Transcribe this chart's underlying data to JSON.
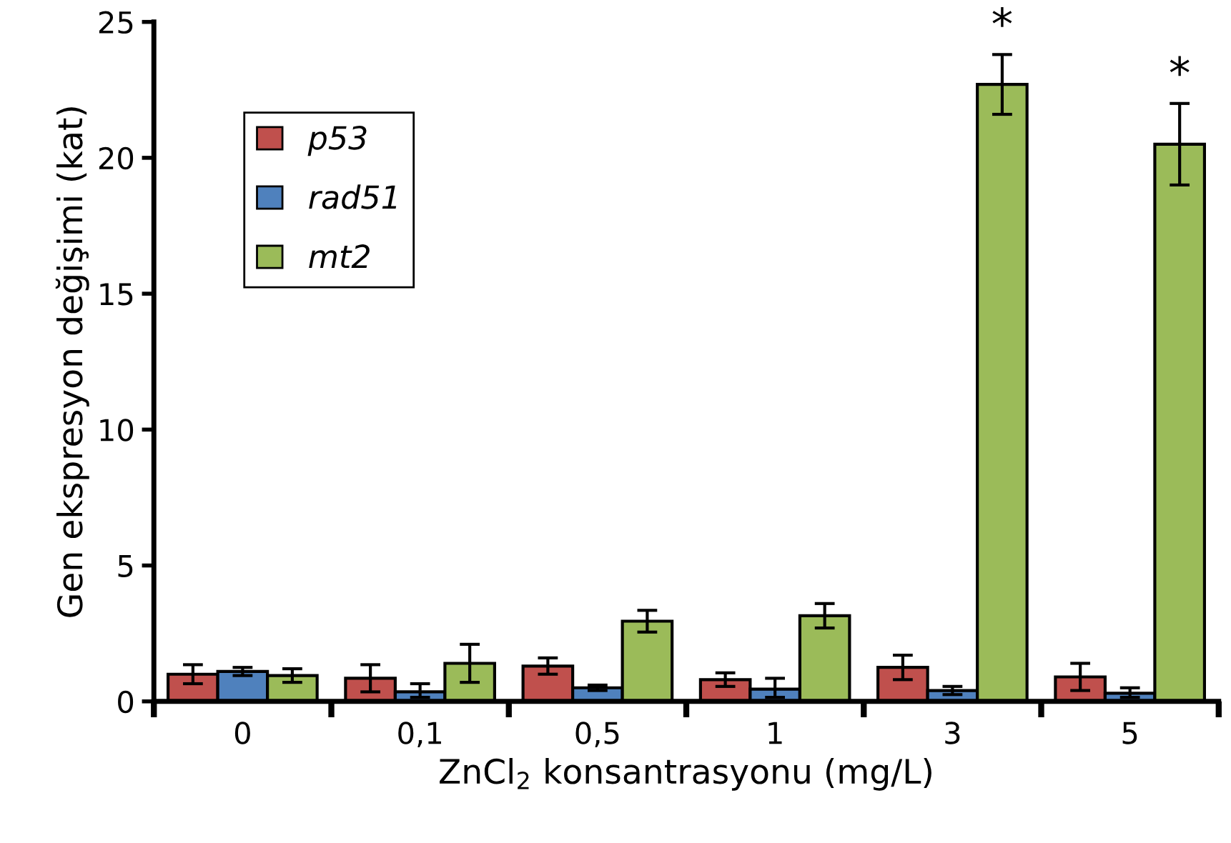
{
  "chart_data": {
    "type": "bar",
    "xlabel": "ZnCl$_{2}$ konsantrasyonu (mg/L)",
    "ylabel": "Gen ekspresyon değişimi (kat)",
    "categories": [
      "0",
      "0,1",
      "0,5",
      "1",
      "3",
      "5"
    ],
    "series": [
      {
        "name": "p53",
        "color": "#c0504d",
        "values": [
          1.0,
          0.85,
          1.3,
          0.8,
          1.25,
          0.9
        ],
        "errors": [
          0.35,
          0.5,
          0.3,
          0.25,
          0.45,
          0.5
        ]
      },
      {
        "name": "rad51",
        "color": "#4f81bd",
        "values": [
          1.1,
          0.35,
          0.5,
          0.45,
          0.4,
          0.3
        ],
        "errors": [
          0.15,
          [
            0.2,
            0.3
          ],
          0.1,
          [
            0.3,
            0.4
          ],
          0.15,
          [
            0.15,
            0.2
          ]
        ]
      },
      {
        "name": "mt2",
        "color": "#9bbb59",
        "values": [
          0.95,
          1.4,
          2.95,
          3.15,
          22.7,
          20.5
        ],
        "errors": [
          0.25,
          0.7,
          0.4,
          0.45,
          1.1,
          1.5
        ]
      }
    ],
    "annotations": [
      "*",
      "*"
    ],
    "ylim": [
      0,
      25
    ],
    "yticks": [
      0,
      5,
      10,
      15,
      20,
      25
    ],
    "grid": false,
    "legend": "top left"
  }
}
